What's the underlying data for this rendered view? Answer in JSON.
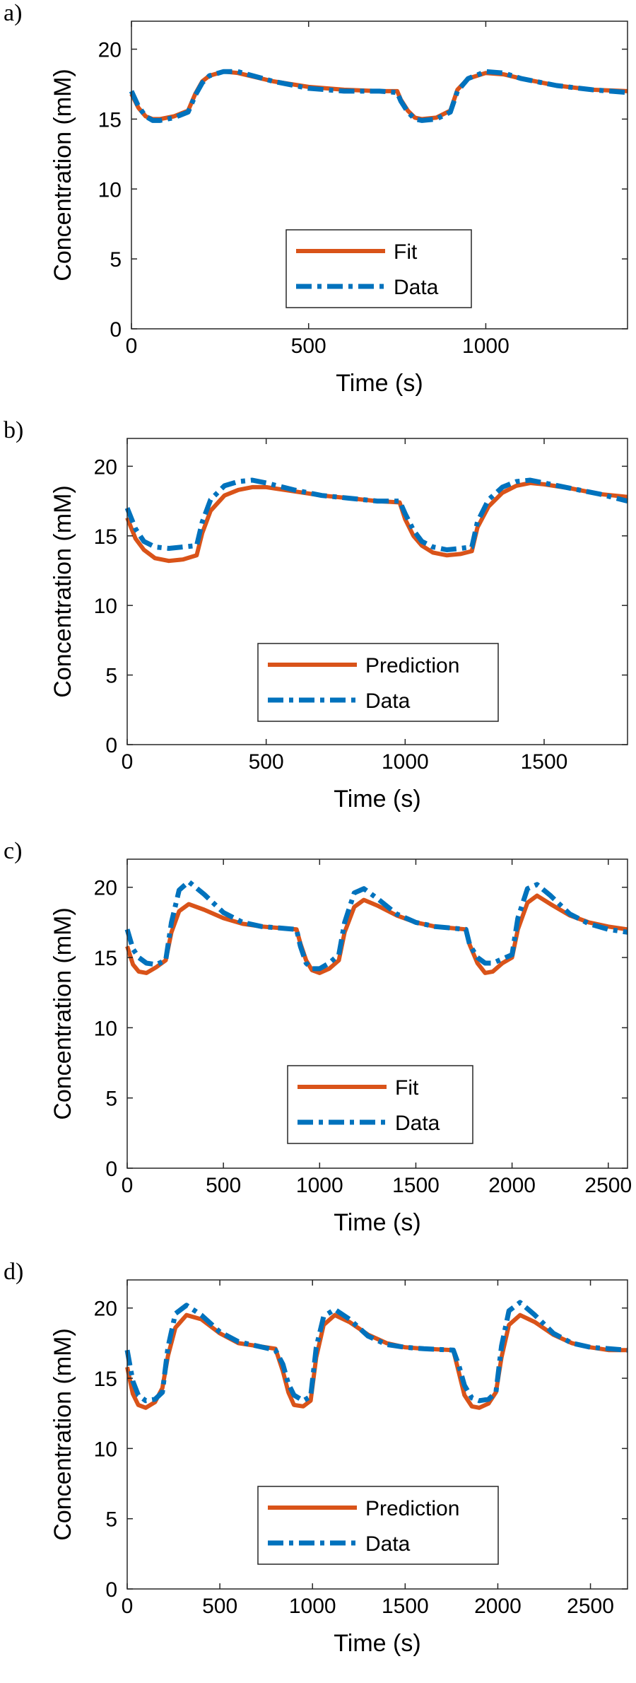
{
  "colors": {
    "fit": "#d95319",
    "data": "#0072bd",
    "axis": "#262626"
  },
  "chart_data": [
    {
      "type": "line",
      "panel_label": "a)",
      "xlabel": "Time (s)",
      "ylabel": "Concentration (mM)",
      "xlim": [
        0,
        1400
      ],
      "ylim": [
        0,
        22
      ],
      "xticks": [
        0,
        500,
        1000
      ],
      "yticks": [
        0,
        5,
        10,
        15,
        20
      ],
      "xtick_labels": [
        "0",
        "500",
        "1000"
      ],
      "ytick_labels": [
        "0",
        "5",
        "10",
        "15",
        "20"
      ],
      "legend_position": "lower-center",
      "series": [
        {
          "name": "Fit",
          "style": "solid",
          "x": [
            0,
            20,
            40,
            60,
            80,
            120,
            160,
            180,
            200,
            220,
            260,
            300,
            400,
            500,
            600,
            700,
            750,
            760,
            780,
            800,
            820,
            860,
            900,
            920,
            950,
            1000,
            1050,
            1100,
            1200,
            1300,
            1400
          ],
          "y": [
            16.8,
            15.8,
            15.2,
            15.0,
            15.0,
            15.2,
            15.6,
            16.8,
            17.7,
            18.1,
            18.4,
            18.3,
            17.7,
            17.3,
            17.1,
            17.0,
            17.0,
            16.4,
            15.6,
            15.1,
            15.0,
            15.1,
            15.6,
            17.1,
            17.9,
            18.3,
            18.2,
            17.9,
            17.4,
            17.1,
            17.0
          ]
        },
        {
          "name": "Data",
          "style": "dashdot",
          "x": [
            0,
            20,
            40,
            60,
            80,
            120,
            160,
            180,
            200,
            220,
            260,
            300,
            400,
            500,
            600,
            700,
            750,
            760,
            780,
            800,
            820,
            860,
            900,
            920,
            950,
            1000,
            1050,
            1100,
            1200,
            1300,
            1400
          ],
          "y": [
            17.0,
            15.9,
            15.2,
            14.9,
            14.9,
            15.1,
            15.5,
            16.7,
            17.6,
            18.1,
            18.4,
            18.4,
            17.7,
            17.2,
            17.0,
            17.0,
            16.9,
            16.3,
            15.5,
            15.0,
            14.9,
            15.0,
            15.5,
            17.0,
            17.9,
            18.4,
            18.3,
            17.9,
            17.4,
            17.1,
            16.9
          ]
        }
      ]
    },
    {
      "type": "line",
      "panel_label": "b)",
      "xlabel": "Time (s)",
      "ylabel": "Concentration (mM)",
      "xlim": [
        0,
        1800
      ],
      "ylim": [
        0,
        22
      ],
      "xticks": [
        0,
        500,
        1000,
        1500
      ],
      "yticks": [
        0,
        5,
        10,
        15,
        20
      ],
      "xtick_labels": [
        "0",
        "500",
        "1000",
        "1500"
      ],
      "ytick_labels": [
        "0",
        "5",
        "10",
        "15",
        "20"
      ],
      "legend_position": "lower-center",
      "series": [
        {
          "name": "Prediction",
          "style": "solid",
          "x": [
            0,
            30,
            60,
            100,
            150,
            200,
            250,
            270,
            300,
            350,
            400,
            450,
            500,
            600,
            700,
            800,
            900,
            980,
            1000,
            1030,
            1060,
            1100,
            1150,
            1200,
            1240,
            1260,
            1300,
            1350,
            1400,
            1450,
            1500,
            1600,
            1700,
            1800
          ],
          "y": [
            16.3,
            14.8,
            14.0,
            13.4,
            13.2,
            13.3,
            13.6,
            15.2,
            16.8,
            17.9,
            18.3,
            18.5,
            18.5,
            18.2,
            17.9,
            17.7,
            17.5,
            17.4,
            16.2,
            15.0,
            14.3,
            13.8,
            13.6,
            13.7,
            13.9,
            15.6,
            17.1,
            18.1,
            18.6,
            18.8,
            18.7,
            18.4,
            18.0,
            17.8
          ]
        },
        {
          "name": "Data",
          "style": "dashdot",
          "x": [
            0,
            30,
            60,
            100,
            150,
            200,
            250,
            270,
            300,
            350,
            400,
            450,
            500,
            600,
            700,
            800,
            900,
            980,
            1000,
            1030,
            1060,
            1100,
            1150,
            1200,
            1240,
            1260,
            1300,
            1350,
            1400,
            1450,
            1500,
            1600,
            1700,
            1800
          ],
          "y": [
            17.0,
            15.5,
            14.6,
            14.2,
            14.1,
            14.2,
            14.3,
            16.0,
            17.6,
            18.6,
            18.9,
            19.0,
            18.8,
            18.3,
            17.9,
            17.7,
            17.5,
            17.5,
            16.6,
            15.4,
            14.6,
            14.2,
            14.0,
            14.1,
            14.2,
            16.0,
            17.6,
            18.5,
            18.9,
            19.0,
            18.8,
            18.4,
            18.0,
            17.5
          ]
        }
      ]
    },
    {
      "type": "line",
      "panel_label": "c)",
      "xlabel": "Time (s)",
      "ylabel": "Concentration (mM)",
      "xlim": [
        0,
        2600
      ],
      "ylim": [
        0,
        22
      ],
      "xticks": [
        0,
        500,
        1000,
        1500,
        2000,
        2500
      ],
      "yticks": [
        0,
        5,
        10,
        15,
        20
      ],
      "xtick_labels": [
        "0",
        "500",
        "1000",
        "1500",
        "2000",
        "2500"
      ],
      "ytick_labels": [
        "0",
        "5",
        "10",
        "15",
        "20"
      ],
      "legend_position": "lower-center",
      "series": [
        {
          "name": "Fit",
          "style": "solid",
          "x": [
            0,
            30,
            60,
            100,
            150,
            200,
            230,
            270,
            320,
            400,
            500,
            600,
            700,
            880,
            900,
            930,
            960,
            1000,
            1050,
            1100,
            1130,
            1180,
            1230,
            1300,
            1400,
            1500,
            1600,
            1760,
            1780,
            1820,
            1860,
            1900,
            1950,
            2000,
            2030,
            2080,
            2130,
            2200,
            2300,
            2400,
            2500,
            2600
          ],
          "y": [
            15.8,
            14.5,
            14.0,
            13.9,
            14.3,
            14.8,
            16.8,
            18.3,
            18.8,
            18.4,
            17.8,
            17.4,
            17.2,
            17.0,
            16.0,
            14.8,
            14.1,
            13.9,
            14.2,
            14.8,
            16.8,
            18.6,
            19.1,
            18.7,
            18.0,
            17.5,
            17.2,
            17.0,
            15.9,
            14.6,
            13.9,
            14.0,
            14.6,
            15.0,
            17.0,
            18.9,
            19.4,
            18.8,
            18.0,
            17.5,
            17.2,
            17.0
          ]
        },
        {
          "name": "Data",
          "style": "dashdot",
          "x": [
            0,
            30,
            60,
            100,
            150,
            200,
            230,
            270,
            320,
            400,
            500,
            600,
            700,
            880,
            900,
            930,
            960,
            1000,
            1050,
            1100,
            1130,
            1180,
            1230,
            1300,
            1400,
            1500,
            1600,
            1760,
            1780,
            1820,
            1860,
            1900,
            1950,
            2000,
            2030,
            2080,
            2130,
            2200,
            2300,
            2400,
            2500,
            2600
          ],
          "y": [
            17.0,
            15.6,
            15.0,
            14.6,
            14.5,
            14.8,
            17.5,
            19.8,
            20.4,
            19.5,
            18.2,
            17.5,
            17.2,
            17.0,
            15.8,
            14.6,
            14.2,
            14.2,
            14.6,
            15.2,
            17.5,
            19.6,
            19.9,
            19.2,
            18.1,
            17.5,
            17.2,
            17.0,
            15.9,
            15.0,
            14.6,
            14.6,
            14.9,
            15.2,
            17.8,
            19.9,
            20.2,
            19.4,
            18.1,
            17.4,
            17.0,
            16.8
          ]
        }
      ]
    },
    {
      "type": "line",
      "panel_label": "d)",
      "xlabel": "Time (s)",
      "ylabel": "Concentration (mM)",
      "xlim": [
        0,
        2700
      ],
      "ylim": [
        0,
        22
      ],
      "xticks": [
        0,
        500,
        1000,
        1500,
        2000,
        2500
      ],
      "yticks": [
        0,
        5,
        10,
        15,
        20
      ],
      "xtick_labels": [
        "0",
        "500",
        "1000",
        "1500",
        "2000",
        "2500"
      ],
      "ytick_labels": [
        "0",
        "5",
        "10",
        "15",
        "20"
      ],
      "legend_position": "lower-center",
      "series": [
        {
          "name": "Prediction",
          "style": "solid",
          "x": [
            0,
            30,
            60,
            100,
            150,
            190,
            220,
            260,
            320,
            400,
            500,
            600,
            800,
            840,
            870,
            900,
            950,
            990,
            1020,
            1060,
            1120,
            1200,
            1300,
            1400,
            1500,
            1600,
            1760,
            1790,
            1820,
            1860,
            1900,
            1950,
            1990,
            2020,
            2060,
            2120,
            2200,
            2300,
            2400,
            2500,
            2600,
            2700
          ],
          "y": [
            15.8,
            13.9,
            13.1,
            12.9,
            13.3,
            14.3,
            16.6,
            18.6,
            19.5,
            19.2,
            18.2,
            17.5,
            17.1,
            15.5,
            14.0,
            13.1,
            13.0,
            13.4,
            16.5,
            18.8,
            19.5,
            19.0,
            18.1,
            17.5,
            17.2,
            17.1,
            17.0,
            15.4,
            13.8,
            13.0,
            12.9,
            13.2,
            14.0,
            16.5,
            18.8,
            19.5,
            19.0,
            18.1,
            17.5,
            17.2,
            17.0,
            17.0
          ]
        },
        {
          "name": "Data",
          "style": "dashdot",
          "x": [
            0,
            30,
            60,
            100,
            150,
            190,
            220,
            260,
            320,
            400,
            500,
            600,
            800,
            840,
            870,
            900,
            950,
            990,
            1020,
            1060,
            1120,
            1200,
            1300,
            1400,
            1500,
            1600,
            1760,
            1790,
            1820,
            1860,
            1900,
            1950,
            1990,
            2020,
            2060,
            2120,
            2200,
            2300,
            2400,
            2500,
            2600,
            2700
          ],
          "y": [
            17.0,
            14.8,
            13.8,
            13.4,
            13.5,
            14.0,
            17.2,
            19.6,
            20.2,
            19.5,
            18.3,
            17.6,
            17.0,
            16.0,
            14.6,
            13.8,
            13.4,
            13.7,
            17.2,
            19.4,
            19.9,
            19.2,
            18.0,
            17.4,
            17.2,
            17.1,
            17.0,
            15.9,
            14.5,
            13.6,
            13.4,
            13.5,
            14.0,
            17.3,
            19.8,
            20.4,
            19.5,
            18.2,
            17.5,
            17.2,
            17.1,
            17.0
          ]
        }
      ]
    }
  ]
}
